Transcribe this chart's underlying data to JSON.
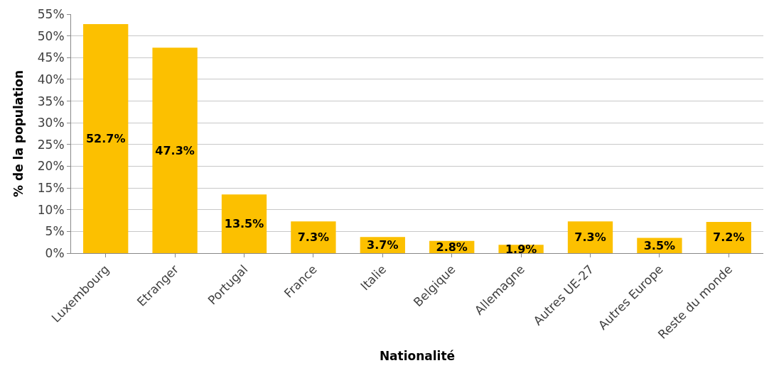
{
  "chart_data": {
    "type": "bar",
    "xlabel": "Nationalité",
    "ylabel": "% de la population",
    "categories": [
      "Luxembourg",
      "Etranger",
      "Portugal",
      "France",
      "Italie",
      "Belgique",
      "Allemagne",
      "Autres UE-27",
      "Autres Europe",
      "Reste du monde"
    ],
    "values": [
      52.7,
      47.3,
      13.5,
      7.3,
      3.7,
      2.8,
      1.9,
      7.3,
      3.5,
      7.2
    ],
    "value_labels": [
      "52.7%",
      "47.3%",
      "13.5%",
      "7.3%",
      "3.7%",
      "2.8%",
      "1.9%",
      "7.3%",
      "3.5%",
      "7.2%"
    ],
    "color": "#fcc000",
    "ylim": [
      0,
      55
    ],
    "yticks": [
      {
        "value": 0,
        "label": "0%"
      },
      {
        "value": 5,
        "label": "5%"
      },
      {
        "value": 10,
        "label": "10%"
      },
      {
        "value": 15,
        "label": "15%"
      },
      {
        "value": 20,
        "label": "20%"
      },
      {
        "value": 25,
        "label": "25%"
      },
      {
        "value": 30,
        "label": "30%"
      },
      {
        "value": 35,
        "label": "35%"
      },
      {
        "value": 40,
        "label": "40%"
      },
      {
        "value": 45,
        "label": "45%"
      },
      {
        "value": 50,
        "label": "50%"
      },
      {
        "value": 55,
        "label": "55%"
      }
    ],
    "grid": "y"
  }
}
